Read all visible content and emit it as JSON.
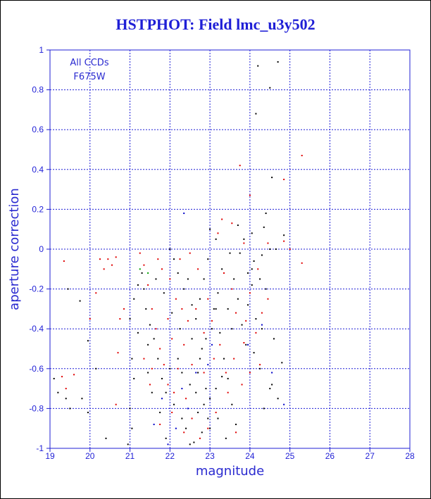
{
  "chart_data": {
    "type": "scatter",
    "title": "HSTPHOT: Field lmc_u3y502",
    "xlabel": "magnitude",
    "ylabel": "aperture correction",
    "xlim": [
      19,
      28
    ],
    "ylim": [
      -1,
      1
    ],
    "x_ticks": [
      "19",
      "20",
      "21",
      "22",
      "23",
      "24",
      "25",
      "26",
      "27",
      "28"
    ],
    "y_ticks": [
      "-1",
      "-0.8",
      "-0.6",
      "-0.4",
      "-0.2",
      "0",
      "0.2",
      "0.4",
      "0.6",
      "0.8",
      "1"
    ],
    "grid": true,
    "annotations": [
      "All CCDs",
      "F675W"
    ],
    "colors": {
      "axis": "#1f1fd6",
      "black": "#000000",
      "red": "#e00000",
      "blue": "#0000c8",
      "green": "#00a000"
    },
    "series": [
      {
        "color": "black",
        "points": [
          [
            24.2,
            0.92
          ],
          [
            24.7,
            0.94
          ],
          [
            24.5,
            0.81
          ],
          [
            24.15,
            0.68
          ],
          [
            24.55,
            0.36
          ],
          [
            24.4,
            0.18
          ],
          [
            24.35,
            0.11
          ],
          [
            24.05,
            0.08
          ],
          [
            24.85,
            0.07
          ],
          [
            24.5,
            0.0
          ],
          [
            24.65,
            0.0
          ],
          [
            24.3,
            -0.03
          ],
          [
            24.1,
            -0.06
          ],
          [
            24.25,
            -0.15
          ],
          [
            24.4,
            -0.2
          ],
          [
            24.05,
            -0.18
          ],
          [
            23.95,
            -0.28
          ],
          [
            24.15,
            -0.35
          ],
          [
            24.3,
            -0.4
          ],
          [
            24.6,
            -0.45
          ],
          [
            24.8,
            -0.57
          ],
          [
            24.55,
            -0.68
          ],
          [
            24.35,
            -0.8
          ],
          [
            24.5,
            -0.7
          ],
          [
            24.7,
            -0.75
          ],
          [
            24.25,
            -0.6
          ],
          [
            24.1,
            -0.52
          ],
          [
            23.9,
            -0.48
          ],
          [
            23.8,
            -0.38
          ],
          [
            23.7,
            -0.25
          ],
          [
            23.6,
            -0.15
          ],
          [
            23.5,
            -0.02
          ],
          [
            23.3,
            -0.1
          ],
          [
            23.2,
            -0.22
          ],
          [
            23.1,
            -0.3
          ],
          [
            23.05,
            -0.4
          ],
          [
            22.9,
            -0.45
          ],
          [
            22.8,
            -0.5
          ],
          [
            22.75,
            -0.55
          ],
          [
            22.7,
            -0.62
          ],
          [
            22.9,
            -0.7
          ],
          [
            23.0,
            -0.75
          ],
          [
            22.95,
            -0.85
          ],
          [
            23.0,
            -0.9
          ],
          [
            22.8,
            -0.92
          ],
          [
            22.6,
            -0.97
          ],
          [
            22.5,
            -0.98
          ],
          [
            22.4,
            -0.9
          ],
          [
            22.3,
            -0.85
          ],
          [
            22.1,
            -0.78
          ],
          [
            21.9,
            -0.72
          ],
          [
            21.8,
            -0.65
          ],
          [
            21.7,
            -0.55
          ],
          [
            21.6,
            -0.45
          ],
          [
            21.5,
            -0.38
          ],
          [
            21.4,
            -0.3
          ],
          [
            21.35,
            -0.2
          ],
          [
            21.3,
            -0.12
          ],
          [
            21.2,
            -0.18
          ],
          [
            21.1,
            -0.25
          ],
          [
            21.0,
            -0.35
          ],
          [
            21.2,
            -0.42
          ],
          [
            21.05,
            -0.55
          ],
          [
            21.1,
            -0.65
          ],
          [
            21.0,
            -0.8
          ],
          [
            21.05,
            -0.9
          ],
          [
            20.95,
            -0.98
          ],
          [
            20.4,
            -0.95
          ],
          [
            19.95,
            -0.82
          ],
          [
            19.8,
            -0.75
          ],
          [
            19.5,
            -0.8
          ],
          [
            19.4,
            -0.75
          ],
          [
            19.2,
            -0.72
          ],
          [
            19.1,
            -0.65
          ],
          [
            19.45,
            -0.2
          ],
          [
            19.75,
            -0.26
          ],
          [
            19.95,
            -0.46
          ],
          [
            20.15,
            -0.6
          ],
          [
            22.0,
            0.0
          ],
          [
            22.1,
            -0.05
          ],
          [
            22.2,
            -0.12
          ],
          [
            22.35,
            -0.2
          ],
          [
            22.55,
            -0.28
          ],
          [
            22.65,
            -0.35
          ],
          [
            22.75,
            -0.25
          ],
          [
            22.85,
            -0.15
          ],
          [
            22.95,
            -0.05
          ],
          [
            23.0,
            0.1
          ],
          [
            23.15,
            -0.3
          ],
          [
            23.25,
            -0.42
          ],
          [
            23.35,
            -0.55
          ],
          [
            23.45,
            -0.65
          ],
          [
            23.55,
            -0.78
          ],
          [
            23.65,
            -0.88
          ],
          [
            23.4,
            -0.95
          ],
          [
            23.2,
            -0.85
          ],
          [
            22.2,
            -0.55
          ],
          [
            22.3,
            -0.62
          ],
          [
            22.0,
            -0.6
          ],
          [
            21.9,
            -0.95
          ],
          [
            21.75,
            -0.82
          ],
          [
            21.55,
            -0.72
          ],
          [
            21.45,
            -0.62
          ],
          [
            22.55,
            -0.45
          ],
          [
            22.65,
            -0.72
          ],
          [
            22.85,
            -0.78
          ],
          [
            23.15,
            -0.7
          ],
          [
            23.3,
            -0.64
          ],
          [
            23.55,
            -0.4
          ],
          [
            23.45,
            -0.3
          ],
          [
            23.75,
            -0.02
          ],
          [
            23.85,
            0.05
          ],
          [
            24.05,
            -0.1
          ],
          [
            23.7,
            0.12
          ],
          [
            23.15,
            0.05
          ],
          [
            23.95,
            -0.12
          ],
          [
            22.45,
            -0.15
          ],
          [
            22.05,
            -0.32
          ],
          [
            21.85,
            -0.22
          ],
          [
            21.65,
            -0.15
          ],
          [
            22.25,
            -0.4
          ],
          [
            21.45,
            -0.48
          ],
          [
            22.5,
            -0.68
          ],
          [
            22.7,
            -0.82
          ]
        ]
      },
      {
        "color": "red",
        "points": [
          [
            25.3,
            0.47
          ],
          [
            23.75,
            0.42
          ],
          [
            24.85,
            0.35
          ],
          [
            24.0,
            0.27
          ],
          [
            23.3,
            0.15
          ],
          [
            23.55,
            0.13
          ],
          [
            23.2,
            0.08
          ],
          [
            23.85,
            0.03
          ],
          [
            24.45,
            0.03
          ],
          [
            24.85,
            0.04
          ],
          [
            25.0,
            0.0
          ],
          [
            25.3,
            -0.07
          ],
          [
            24.2,
            -0.1
          ],
          [
            24.0,
            -0.22
          ],
          [
            24.3,
            -0.32
          ],
          [
            24.15,
            -0.42
          ],
          [
            23.85,
            -0.47
          ],
          [
            23.6,
            -0.55
          ],
          [
            23.4,
            -0.62
          ],
          [
            23.25,
            -0.48
          ],
          [
            23.05,
            -0.36
          ],
          [
            22.95,
            -0.25
          ],
          [
            22.85,
            -0.42
          ],
          [
            22.65,
            -0.3
          ],
          [
            22.45,
            -0.36
          ],
          [
            22.35,
            -0.48
          ],
          [
            22.2,
            -0.6
          ],
          [
            22.1,
            -0.72
          ],
          [
            22.05,
            -0.82
          ],
          [
            21.95,
            -0.68
          ],
          [
            21.85,
            -0.58
          ],
          [
            21.75,
            -0.5
          ],
          [
            21.65,
            -0.4
          ],
          [
            21.55,
            -0.3
          ],
          [
            21.45,
            -0.18
          ],
          [
            21.35,
            -0.08
          ],
          [
            21.25,
            -0.02
          ],
          [
            21.7,
            -0.05
          ],
          [
            21.8,
            -0.1
          ],
          [
            22.0,
            -0.15
          ],
          [
            22.15,
            -0.25
          ],
          [
            22.25,
            -0.05
          ],
          [
            22.5,
            -0.02
          ],
          [
            22.7,
            -0.1
          ],
          [
            23.35,
            -0.12
          ],
          [
            23.55,
            -0.2
          ],
          [
            20.0,
            -0.35
          ],
          [
            20.25,
            -0.05
          ],
          [
            20.45,
            -0.05
          ],
          [
            20.55,
            -0.08
          ],
          [
            20.35,
            -0.1
          ],
          [
            20.65,
            -0.04
          ],
          [
            19.35,
            -0.06
          ],
          [
            19.6,
            -0.63
          ],
          [
            19.3,
            -0.64
          ],
          [
            19.4,
            -0.7
          ],
          [
            20.15,
            -0.22
          ],
          [
            20.75,
            -0.35
          ],
          [
            20.85,
            -0.3
          ],
          [
            20.7,
            -0.52
          ],
          [
            20.65,
            -0.78
          ],
          [
            21.35,
            -0.55
          ],
          [
            21.5,
            -0.68
          ],
          [
            21.75,
            -0.88
          ],
          [
            22.35,
            -0.92
          ],
          [
            22.55,
            -0.85
          ],
          [
            22.75,
            -0.95
          ],
          [
            22.95,
            -0.9
          ],
          [
            23.15,
            -0.82
          ],
          [
            23.45,
            -0.72
          ],
          [
            23.65,
            -0.92
          ],
          [
            23.8,
            -0.68
          ],
          [
            24.0,
            -0.62
          ],
          [
            22.3,
            -0.3
          ],
          [
            22.55,
            -0.58
          ],
          [
            22.85,
            -0.62
          ],
          [
            23.1,
            -0.55
          ],
          [
            23.65,
            -0.32
          ],
          [
            22.05,
            -0.45
          ],
          [
            21.55,
            -0.6
          ],
          [
            24.25,
            -0.58
          ],
          [
            24.45,
            -0.25
          ],
          [
            23.9,
            -0.36
          ],
          [
            22.4,
            -0.75
          ],
          [
            21.95,
            -0.35
          ]
        ]
      },
      {
        "color": "blue",
        "points": [
          [
            22.35,
            0.18
          ],
          [
            23.95,
            -0.48
          ],
          [
            24.3,
            -0.38
          ],
          [
            24.55,
            -0.62
          ],
          [
            24.85,
            -0.78
          ],
          [
            22.95,
            -0.58
          ],
          [
            22.45,
            -0.8
          ],
          [
            21.6,
            -0.88
          ],
          [
            21.95,
            -0.98
          ],
          [
            22.65,
            -0.62
          ],
          [
            23.05,
            -0.48
          ],
          [
            22.3,
            -0.7
          ],
          [
            21.8,
            -0.75
          ],
          [
            22.15,
            -0.9
          ]
        ]
      },
      {
        "color": "green",
        "points": [
          [
            21.25,
            -0.1
          ],
          [
            21.45,
            -0.12
          ]
        ]
      }
    ]
  }
}
